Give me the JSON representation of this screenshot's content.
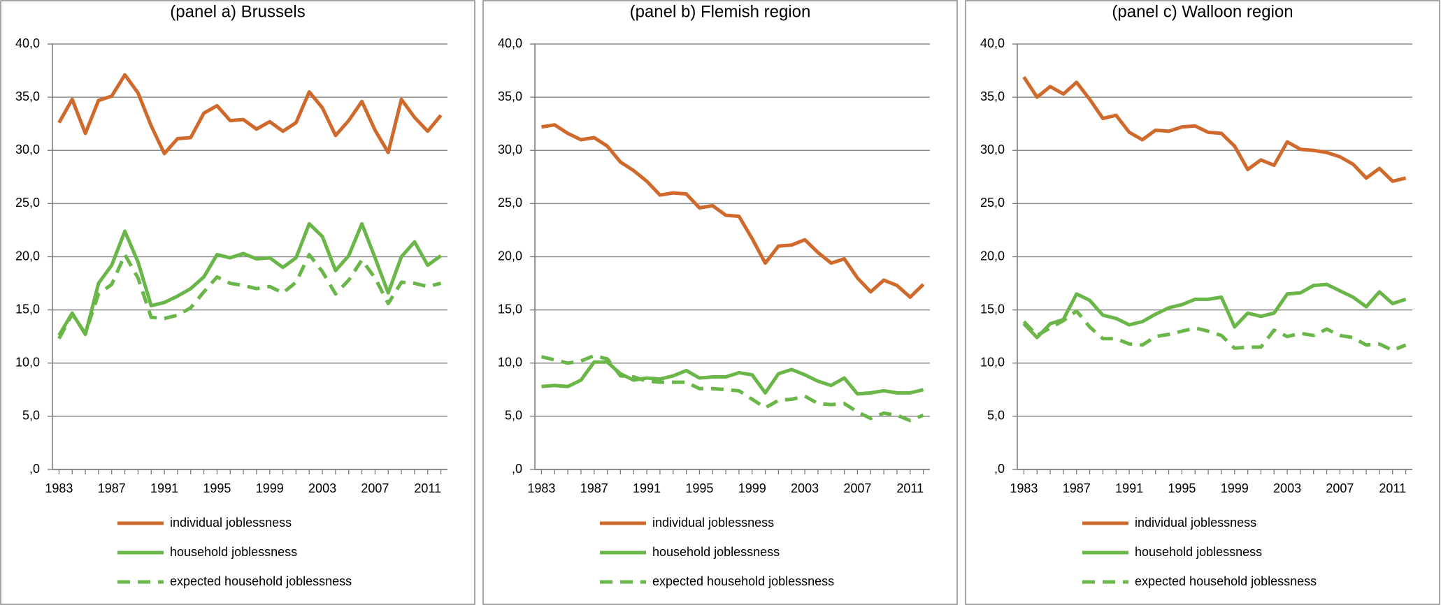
{
  "chart_data": [
    {
      "type": "line",
      "title": "(panel a) Brussels",
      "x": [
        1983,
        1984,
        1985,
        1986,
        1987,
        1988,
        1989,
        1990,
        1991,
        1992,
        1993,
        1994,
        1995,
        1996,
        1997,
        1998,
        1999,
        2000,
        2001,
        2002,
        2003,
        2004,
        2005,
        2006,
        2007,
        2008,
        2009,
        2010,
        2011,
        2012
      ],
      "xlim": [
        1982.5,
        2012.5
      ],
      "xticks": [
        1983,
        1987,
        1991,
        1995,
        1999,
        2003,
        2007,
        2011
      ],
      "ylim": [
        0,
        40
      ],
      "yticks": [
        {
          "value": 0,
          "label": ",0"
        },
        {
          "value": 5,
          "label": "5,0"
        },
        {
          "value": 10,
          "label": "10,0"
        },
        {
          "value": 15,
          "label": "15,0"
        },
        {
          "value": 20,
          "label": "20,0"
        },
        {
          "value": 25,
          "label": "25,0"
        },
        {
          "value": 30,
          "label": "30,0"
        },
        {
          "value": 35,
          "label": "35,0"
        },
        {
          "value": 40,
          "label": "40,0"
        }
      ],
      "grid": true,
      "series": [
        {
          "name": "individual joblessness",
          "color": "#d06a2c",
          "line_style": "solid",
          "values": [
            32.6,
            34.8,
            31.6,
            34.7,
            35.1,
            37.1,
            35.4,
            32.3,
            29.7,
            31.1,
            31.2,
            33.5,
            34.2,
            32.8,
            32.9,
            32.0,
            32.7,
            31.8,
            32.6,
            35.5,
            34.0,
            31.4,
            32.8,
            34.6,
            31.9,
            29.8,
            34.8,
            33.1,
            31.8,
            33.3
          ]
        },
        {
          "name": "household joblessness",
          "color": "#6ab648",
          "line_style": "solid",
          "values": [
            12.6,
            14.7,
            12.7,
            17.5,
            19.2,
            22.4,
            19.5,
            15.4,
            15.7,
            16.3,
            17.0,
            18.1,
            20.2,
            19.9,
            20.3,
            19.8,
            19.9,
            19.0,
            19.9,
            23.1,
            21.9,
            18.7,
            20.1,
            23.1,
            19.9,
            16.6,
            20.0,
            21.4,
            19.2,
            20.1
          ]
        },
        {
          "name": "expected household joblessness",
          "color": "#6ab648",
          "line_style": "dashed",
          "values": [
            12.3,
            14.6,
            12.8,
            16.5,
            17.4,
            20.2,
            18.0,
            14.3,
            14.2,
            14.5,
            15.2,
            16.7,
            18.1,
            17.5,
            17.3,
            17.0,
            17.2,
            16.6,
            17.6,
            20.2,
            18.6,
            16.5,
            17.8,
            19.7,
            18.0,
            15.6,
            17.6,
            17.5,
            17.2,
            17.5
          ]
        }
      ]
    },
    {
      "type": "line",
      "title": "(panel b) Flemish region",
      "x": [
        1983,
        1984,
        1985,
        1986,
        1987,
        1988,
        1989,
        1990,
        1991,
        1992,
        1993,
        1994,
        1995,
        1996,
        1997,
        1998,
        1999,
        2000,
        2001,
        2002,
        2003,
        2004,
        2005,
        2006,
        2007,
        2008,
        2009,
        2010,
        2011,
        2012
      ],
      "xlim": [
        1982.5,
        2012.5
      ],
      "xticks": [
        1983,
        1987,
        1991,
        1995,
        1999,
        2003,
        2007,
        2011
      ],
      "ylim": [
        0,
        40
      ],
      "yticks": [
        {
          "value": 0,
          "label": ",0"
        },
        {
          "value": 5,
          "label": "5,0"
        },
        {
          "value": 10,
          "label": "10,0"
        },
        {
          "value": 15,
          "label": "15,0"
        },
        {
          "value": 20,
          "label": "20,0"
        },
        {
          "value": 25,
          "label": "25,0"
        },
        {
          "value": 30,
          "label": "30,0"
        },
        {
          "value": 35,
          "label": "35,0"
        },
        {
          "value": 40,
          "label": "40,0"
        }
      ],
      "grid": true,
      "series": [
        {
          "name": "individual joblessness",
          "color": "#d06a2c",
          "line_style": "solid",
          "values": [
            32.2,
            32.4,
            31.6,
            31.0,
            31.2,
            30.4,
            28.9,
            28.1,
            27.1,
            25.8,
            26.0,
            25.9,
            24.6,
            24.8,
            23.9,
            23.8,
            21.7,
            19.4,
            21.0,
            21.1,
            21.6,
            20.4,
            19.4,
            19.8,
            18.0,
            16.7,
            17.8,
            17.3,
            16.2,
            17.4
          ]
        },
        {
          "name": "household joblessness",
          "color": "#6ab648",
          "line_style": "solid",
          "values": [
            7.8,
            7.9,
            7.8,
            8.4,
            10.1,
            10.1,
            9.0,
            8.4,
            8.6,
            8.5,
            8.8,
            9.3,
            8.6,
            8.7,
            8.7,
            9.1,
            8.9,
            7.2,
            9.0,
            9.4,
            8.9,
            8.3,
            7.9,
            8.6,
            7.1,
            7.2,
            7.4,
            7.2,
            7.2,
            7.5
          ]
        },
        {
          "name": "expected household joblessness",
          "color": "#6ab648",
          "line_style": "dashed",
          "values": [
            10.6,
            10.3,
            10.0,
            10.2,
            10.7,
            10.4,
            8.8,
            8.7,
            8.3,
            8.2,
            8.2,
            8.2,
            7.6,
            7.6,
            7.5,
            7.4,
            6.6,
            5.8,
            6.5,
            6.6,
            6.9,
            6.2,
            6.1,
            6.2,
            5.4,
            4.8,
            5.3,
            5.1,
            4.6,
            5.1
          ]
        }
      ]
    },
    {
      "type": "line",
      "title": "(panel c) Walloon region",
      "x": [
        1983,
        1984,
        1985,
        1986,
        1987,
        1988,
        1989,
        1990,
        1991,
        1992,
        1993,
        1994,
        1995,
        1996,
        1997,
        1998,
        1999,
        2000,
        2001,
        2002,
        2003,
        2004,
        2005,
        2006,
        2007,
        2008,
        2009,
        2010,
        2011,
        2012
      ],
      "xlim": [
        1982.5,
        2012.5
      ],
      "xticks": [
        1983,
        1987,
        1991,
        1995,
        1999,
        2003,
        2007,
        2011
      ],
      "ylim": [
        0,
        40
      ],
      "yticks": [
        {
          "value": 0,
          "label": ",0"
        },
        {
          "value": 5,
          "label": "5,0"
        },
        {
          "value": 10,
          "label": "10,0"
        },
        {
          "value": 15,
          "label": "15,0"
        },
        {
          "value": 20,
          "label": "20,0"
        },
        {
          "value": 25,
          "label": "25,0"
        },
        {
          "value": 30,
          "label": "30,0"
        },
        {
          "value": 35,
          "label": "35,0"
        },
        {
          "value": 40,
          "label": "40,0"
        }
      ],
      "grid": true,
      "series": [
        {
          "name": "individual joblessness",
          "color": "#d06a2c",
          "line_style": "solid",
          "values": [
            36.9,
            35.0,
            36.0,
            35.3,
            36.4,
            34.8,
            33.0,
            33.3,
            31.7,
            31.0,
            31.9,
            31.8,
            32.2,
            32.3,
            31.7,
            31.6,
            30.4,
            28.2,
            29.1,
            28.6,
            30.8,
            30.1,
            30.0,
            29.8,
            29.4,
            28.7,
            27.4,
            28.3,
            27.1,
            27.4
          ]
        },
        {
          "name": "household joblessness",
          "color": "#6ab648",
          "line_style": "solid",
          "values": [
            13.7,
            12.4,
            13.7,
            14.1,
            16.5,
            15.9,
            14.5,
            14.2,
            13.6,
            13.9,
            14.6,
            15.2,
            15.5,
            16.0,
            16.0,
            16.2,
            13.4,
            14.7,
            14.4,
            14.7,
            16.5,
            16.6,
            17.3,
            17.4,
            16.8,
            16.2,
            15.3,
            16.7,
            15.6,
            16.0
          ]
        },
        {
          "name": "expected household joblessness",
          "color": "#6ab648",
          "line_style": "dashed",
          "values": [
            13.9,
            12.6,
            13.3,
            14.0,
            14.9,
            13.4,
            12.3,
            12.3,
            11.8,
            11.7,
            12.5,
            12.7,
            13.0,
            13.3,
            13.0,
            12.6,
            11.4,
            11.5,
            11.5,
            13.1,
            12.5,
            12.8,
            12.6,
            13.2,
            12.6,
            12.4,
            11.7,
            11.8,
            11.2,
            11.7
          ]
        }
      ]
    }
  ]
}
